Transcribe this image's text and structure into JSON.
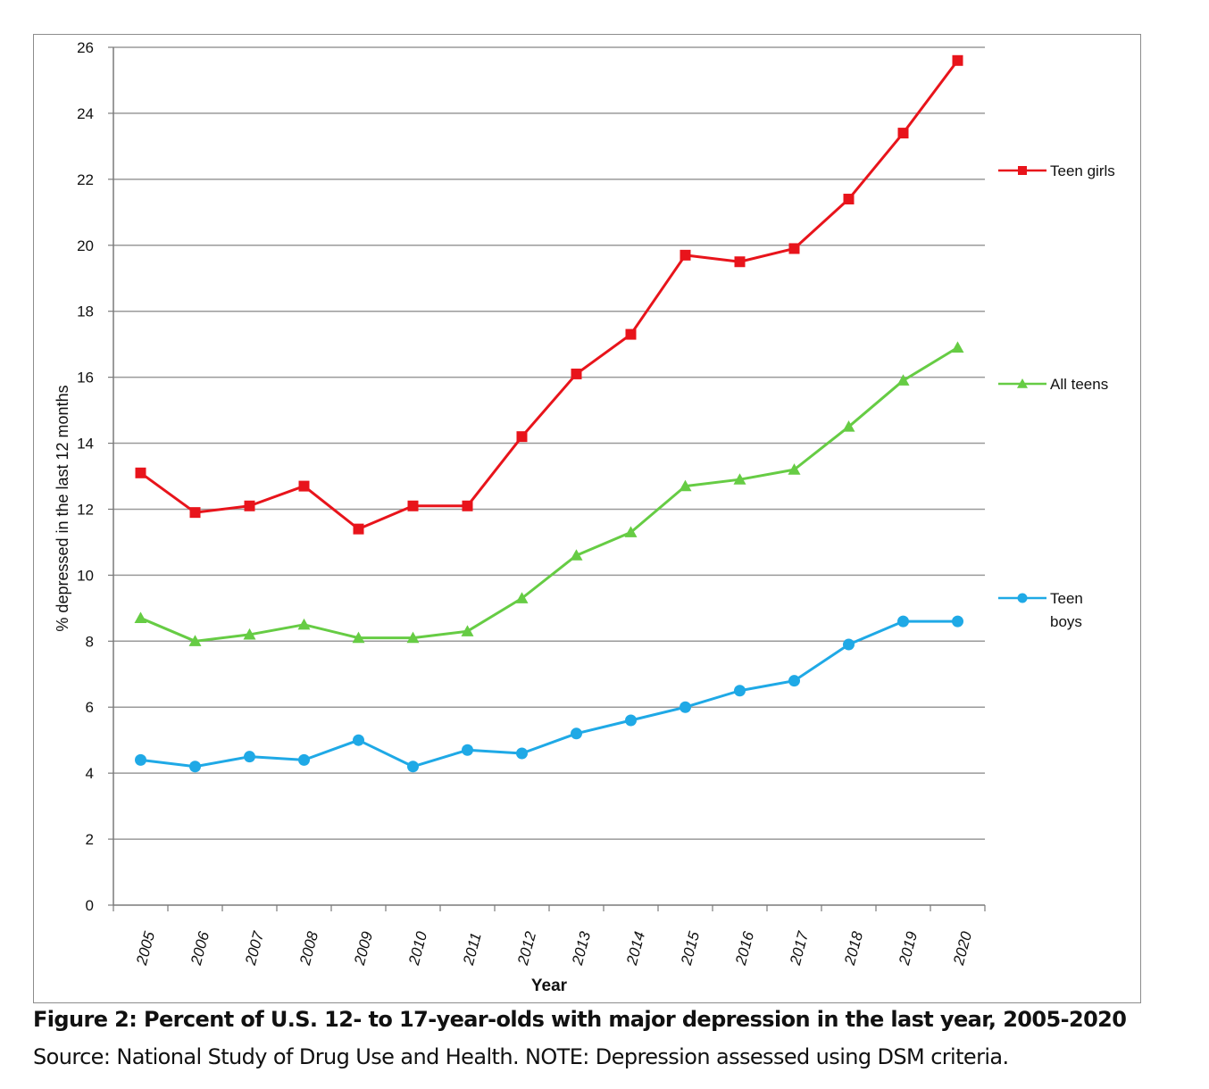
{
  "caption": {
    "title": "Figure 2: Percent of U.S. 12- to 17-year-olds with major depression in the last year, 2005-2020",
    "source": "Source: National Study of Drug Use and Health. NOTE: Depression assessed using DSM criteria."
  },
  "chart_data": {
    "type": "line",
    "title": "",
    "xlabel": "Year",
    "ylabel": "% depressed in the last 12 months",
    "x": [
      "2005",
      "2006",
      "2007",
      "2008",
      "2009",
      "2010",
      "2011",
      "2012",
      "2013",
      "2014",
      "2015",
      "2016",
      "2017",
      "2018",
      "2019",
      "2020"
    ],
    "ylim": [
      0,
      26
    ],
    "yticks": [
      "0",
      "2",
      "4",
      "6",
      "8",
      "10",
      "12",
      "14",
      "16",
      "18",
      "20",
      "22",
      "24",
      "26"
    ],
    "grid": true,
    "legend_placement": "right",
    "series": [
      {
        "name": "Teen girls",
        "color": "#e8141b",
        "marker": "square",
        "values": [
          13.1,
          11.9,
          12.1,
          12.7,
          11.4,
          12.1,
          12.1,
          14.2,
          16.1,
          17.3,
          19.7,
          19.5,
          19.9,
          21.4,
          23.4,
          25.6
        ]
      },
      {
        "name": "All teens",
        "color": "#66cc44",
        "marker": "triangle",
        "values": [
          8.7,
          8.0,
          8.2,
          8.5,
          8.1,
          8.1,
          8.3,
          9.3,
          10.6,
          11.3,
          12.7,
          12.9,
          13.2,
          14.5,
          15.9,
          16.9
        ]
      },
      {
        "name": "Teen boys",
        "color": "#1fa9e6",
        "marker": "circle",
        "values": [
          4.4,
          4.2,
          4.5,
          4.4,
          5.0,
          4.2,
          4.7,
          4.6,
          5.2,
          5.6,
          6.0,
          6.5,
          6.8,
          7.9,
          8.6,
          8.6
        ]
      }
    ]
  }
}
